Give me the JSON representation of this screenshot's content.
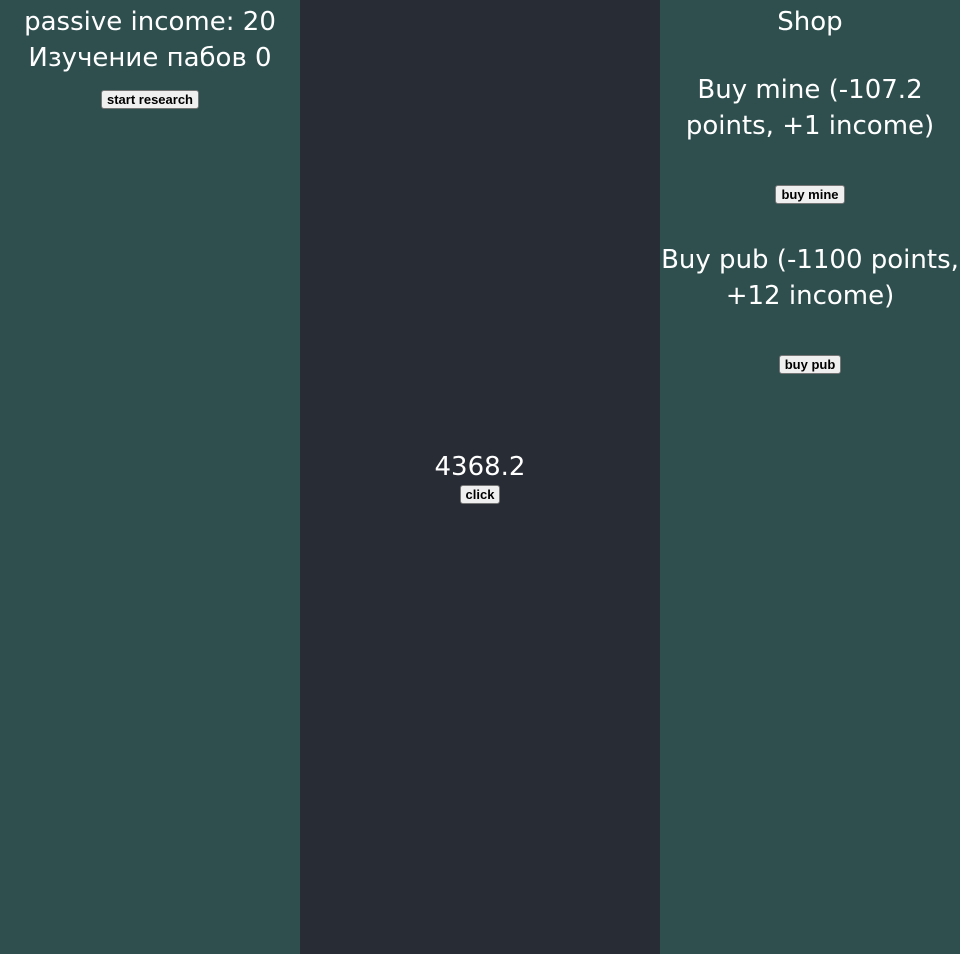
{
  "left_panel": {
    "passive_income_text": "passive income: 20",
    "research_status_text": "Изучение пабов 0",
    "start_research_label": "start research"
  },
  "center_panel": {
    "points_value": "4368.2",
    "click_label": "click"
  },
  "shop": {
    "title": "Shop",
    "items": [
      {
        "description": "Buy mine (-107.2 points, +1 income)",
        "button_label": "buy mine"
      },
      {
        "description": "Buy pub (-1100 points, +12 income)",
        "button_label": "buy pub"
      }
    ]
  },
  "colors": {
    "side_panel_bg": "#2f4f4f",
    "center_panel_bg": "#282c34",
    "text": "#ffffff"
  }
}
